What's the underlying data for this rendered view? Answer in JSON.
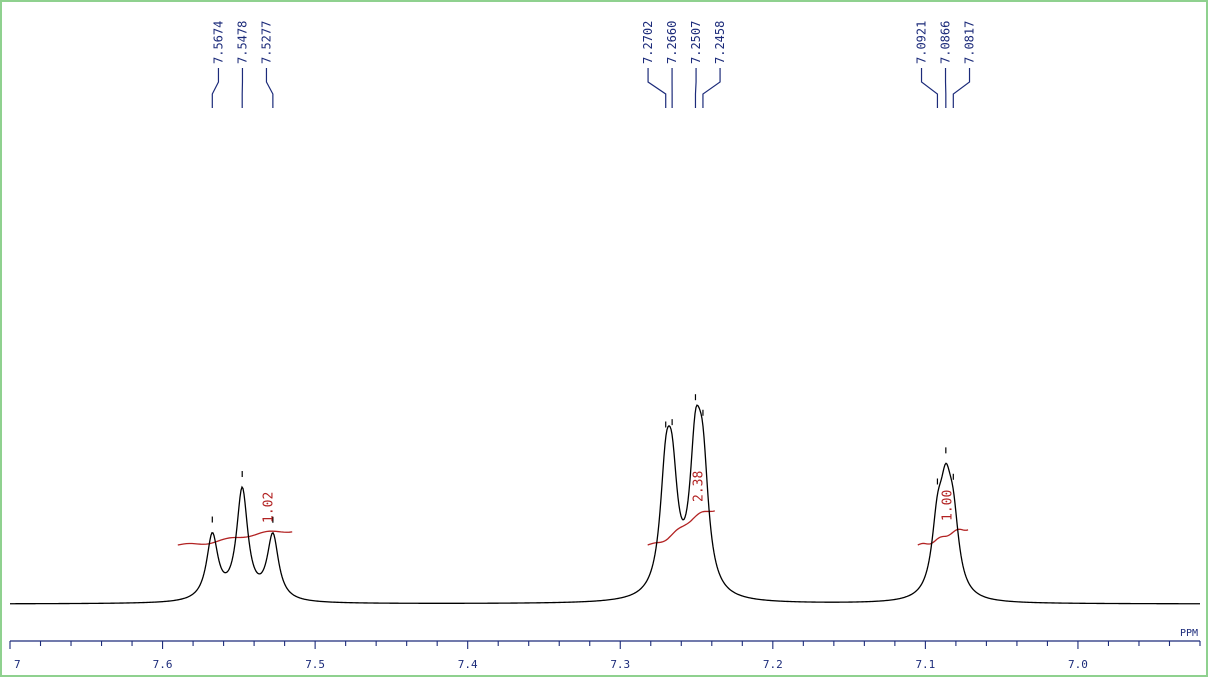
{
  "chart_data": {
    "type": "line",
    "xlabel": "PPM",
    "x_reversed": true,
    "xlim": [
      7.7,
      6.92
    ],
    "x_ticks": [
      7.6,
      7.5,
      7.4,
      7.3,
      7.2,
      7.1,
      7.0
    ],
    "x_tick_labels": [
      "7.6",
      "7.5",
      "7.4",
      "7.3",
      "7.2",
      "7.1",
      "7.0"
    ],
    "edge_tick_label": "7",
    "peak_labels": [
      "7.5674",
      "7.5478",
      "7.5277",
      "7.2702",
      "7.2660",
      "7.2507",
      "7.2458",
      "7.0921",
      "7.0866",
      "7.0817"
    ],
    "peak_groups": [
      {
        "label_values": [
          7.5674,
          7.5478,
          7.5277
        ],
        "line_heights": [
          0.1,
          0.17,
          0.1
        ]
      },
      {
        "label_values": [
          7.2702,
          7.266,
          7.2507,
          7.2458
        ],
        "line_heights": [
          0.16,
          0.15,
          0.2,
          0.17
        ]
      },
      {
        "label_values": [
          7.0921,
          7.0866,
          7.0817
        ],
        "line_heights": [
          0.1,
          0.13,
          0.1
        ]
      }
    ],
    "integrals": [
      {
        "label": "1.02",
        "from": 7.59,
        "to": 7.515,
        "label_at": 7.528
      },
      {
        "label": "2.38",
        "from": 7.282,
        "to": 7.238,
        "label_at": 7.246
      },
      {
        "label": "1.00",
        "from": 7.105,
        "to": 7.072,
        "label_at": 7.083
      }
    ],
    "colors": {
      "spectrum": "#000000",
      "labels": "#1c2b7a",
      "integrals": "#b22222",
      "frame": "#8fd18f"
    }
  }
}
